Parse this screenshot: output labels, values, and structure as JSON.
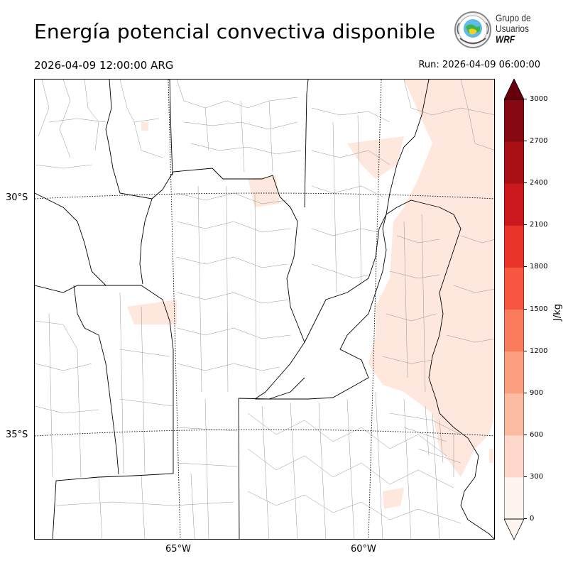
{
  "title": "Energía potencial convectiva disponible",
  "valid_time": "2026-04-09 12:00:00 ARG",
  "run_label": "Run: 2026-04-09 06:00:00",
  "logo": {
    "line1": "Grupo de",
    "line2": "Usuarios",
    "line3": "WRF",
    "emblem": "globe-emblem-icon"
  },
  "map": {
    "lat_labels": [
      "30°S",
      "35°S"
    ],
    "lon_labels": [
      "65°W",
      "60°W"
    ],
    "field": "CAPE",
    "shading_color": "#fee7dc"
  },
  "colorbar": {
    "unit": "J/kg",
    "ticks": [
      "3000",
      "2700",
      "2400",
      "2100",
      "1800",
      "1500",
      "1200",
      "900",
      "600",
      "300",
      "0"
    ],
    "colors": [
      "#fff5f0",
      "#fdd8cb",
      "#fcbba1",
      "#fc9e80",
      "#fb7c5c",
      "#f6573e",
      "#e83328",
      "#cb181d",
      "#a81016",
      "#860811",
      "#67000d"
    ]
  }
}
